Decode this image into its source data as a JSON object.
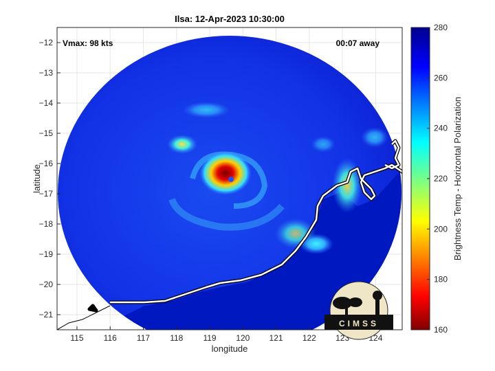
{
  "title": "Ilsa: 12-Apr-2023 10:30:00",
  "annotations": {
    "vmax": "Vmax: 98 kts",
    "time_away": "00:07 away"
  },
  "axes": {
    "xlabel": "longitude",
    "ylabel": "latitude",
    "xlim": [
      114.4,
      124.8
    ],
    "ylim": [
      -21.5,
      -11.5
    ],
    "xticks": [
      115,
      116,
      117,
      118,
      119,
      120,
      121,
      122,
      123,
      124
    ],
    "yticks": [
      -12,
      -13,
      -14,
      -15,
      -16,
      -17,
      -18,
      -19,
      -20,
      -21
    ],
    "grid": true
  },
  "colorbar": {
    "label": "Brightness Temp - Horizontal Polarization",
    "range": [
      160,
      280
    ],
    "ticks": [
      160,
      180,
      200,
      220,
      240,
      260,
      280
    ],
    "colormap": "jet"
  },
  "logo": {
    "text": "CIMSS"
  },
  "storm": {
    "center_lon": 119.5,
    "center_lat": -16.4
  },
  "colors": {
    "background_min": "#0a1fd0",
    "coast": "#ffffff",
    "eye": "#8b0000"
  }
}
